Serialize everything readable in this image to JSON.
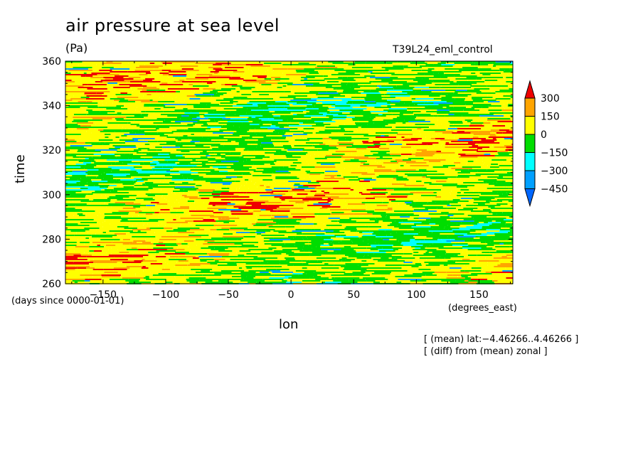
{
  "chart_data": {
    "type": "heatmap",
    "title": "air pressure at sea level",
    "units": "(Pa)",
    "run_label": "T39L24_eml_control",
    "xlabel": "lon",
    "ylabel": "time",
    "x_units": "(degrees_east)",
    "y_units": "(days since 0000-01-01)",
    "xlim": [
      -180,
      177
    ],
    "ylim": [
      260,
      360
    ],
    "xticks": [
      -150,
      -100,
      -50,
      0,
      50,
      100,
      150
    ],
    "yticks": [
      260,
      280,
      300,
      320,
      340,
      360
    ],
    "colorbar": {
      "levels": [
        -450,
        -300,
        -150,
        0,
        150,
        300
      ],
      "labels": [
        "300",
        "150",
        "0",
        "−150",
        "−300",
        "−450"
      ],
      "colors": [
        "#0066ff",
        "#00a0ff",
        "#00ffff",
        "#00dd00",
        "#ffff00",
        "#ffa500",
        "#ee0000"
      ]
    },
    "notes": [
      "[ (mean) lat:−4.46266..4.46266 ]",
      "[ (diff) from (mean) zonal ]"
    ]
  }
}
